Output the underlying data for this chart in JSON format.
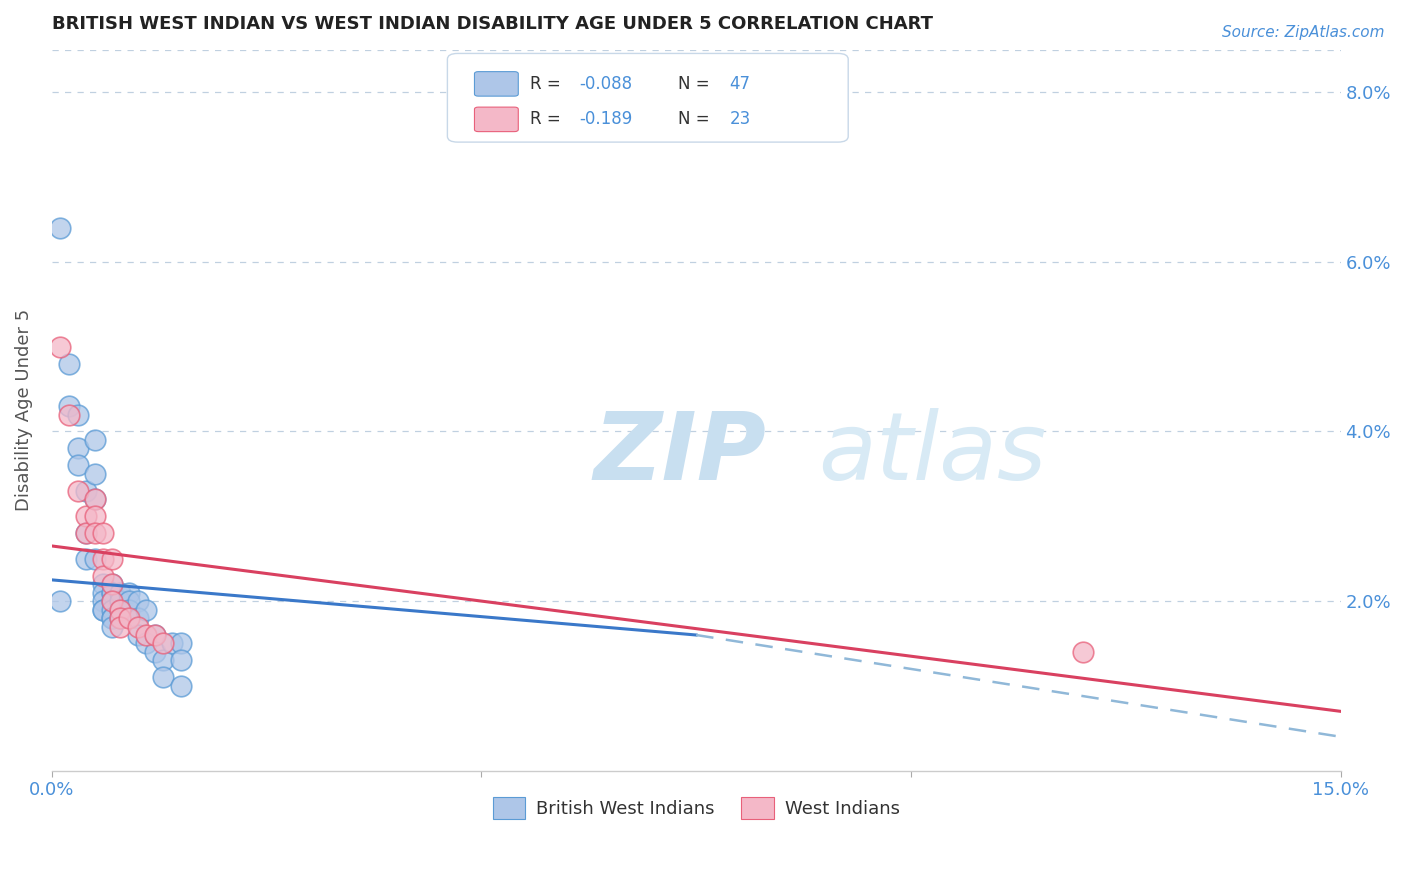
{
  "title": "BRITISH WEST INDIAN VS WEST INDIAN DISABILITY AGE UNDER 5 CORRELATION CHART",
  "source": "Source: ZipAtlas.com",
  "ylabel": "Disability Age Under 5",
  "xmin": 0.0,
  "xmax": 0.15,
  "ymin": 0.0,
  "ymax": 0.085,
  "ytick_vals": [
    0.02,
    0.04,
    0.06,
    0.08
  ],
  "blue_color": "#aec6e8",
  "blue_edge_color": "#5b9bd5",
  "pink_color": "#f4b8c8",
  "pink_edge_color": "#e8607a",
  "trend_blue_color": "#3a78c9",
  "trend_pink_color": "#d94060",
  "trend_dashed_color": "#90b8d8",
  "watermark_zip_color": "#c8dff0",
  "watermark_atlas_color": "#d8eaf5",
  "axis_text_color": "#4a90d9",
  "blue_scatter": [
    [
      0.001,
      0.064
    ],
    [
      0.002,
      0.048
    ],
    [
      0.002,
      0.043
    ],
    [
      0.003,
      0.042
    ],
    [
      0.003,
      0.038
    ],
    [
      0.003,
      0.036
    ],
    [
      0.004,
      0.033
    ],
    [
      0.004,
      0.028
    ],
    [
      0.004,
      0.025
    ],
    [
      0.005,
      0.039
    ],
    [
      0.005,
      0.035
    ],
    [
      0.005,
      0.032
    ],
    [
      0.005,
      0.025
    ],
    [
      0.006,
      0.022
    ],
    [
      0.006,
      0.021
    ],
    [
      0.006,
      0.02
    ],
    [
      0.006,
      0.019
    ],
    [
      0.006,
      0.019
    ],
    [
      0.007,
      0.022
    ],
    [
      0.007,
      0.021
    ],
    [
      0.007,
      0.021
    ],
    [
      0.007,
      0.02
    ],
    [
      0.007,
      0.019
    ],
    [
      0.007,
      0.018
    ],
    [
      0.007,
      0.018
    ],
    [
      0.007,
      0.017
    ],
    [
      0.008,
      0.021
    ],
    [
      0.008,
      0.02
    ],
    [
      0.008,
      0.019
    ],
    [
      0.008,
      0.018
    ],
    [
      0.009,
      0.021
    ],
    [
      0.009,
      0.02
    ],
    [
      0.009,
      0.019
    ],
    [
      0.01,
      0.02
    ],
    [
      0.01,
      0.018
    ],
    [
      0.01,
      0.016
    ],
    [
      0.011,
      0.019
    ],
    [
      0.011,
      0.015
    ],
    [
      0.012,
      0.016
    ],
    [
      0.012,
      0.014
    ],
    [
      0.013,
      0.013
    ],
    [
      0.013,
      0.011
    ],
    [
      0.014,
      0.015
    ],
    [
      0.015,
      0.015
    ],
    [
      0.015,
      0.013
    ],
    [
      0.015,
      0.01
    ],
    [
      0.001,
      0.02
    ]
  ],
  "pink_scatter": [
    [
      0.001,
      0.05
    ],
    [
      0.002,
      0.042
    ],
    [
      0.003,
      0.033
    ],
    [
      0.004,
      0.03
    ],
    [
      0.004,
      0.028
    ],
    [
      0.005,
      0.032
    ],
    [
      0.005,
      0.03
    ],
    [
      0.005,
      0.028
    ],
    [
      0.006,
      0.028
    ],
    [
      0.006,
      0.025
    ],
    [
      0.006,
      0.023
    ],
    [
      0.007,
      0.025
    ],
    [
      0.007,
      0.022
    ],
    [
      0.007,
      0.02
    ],
    [
      0.008,
      0.019
    ],
    [
      0.008,
      0.018
    ],
    [
      0.008,
      0.017
    ],
    [
      0.009,
      0.018
    ],
    [
      0.01,
      0.017
    ],
    [
      0.011,
      0.016
    ],
    [
      0.012,
      0.016
    ],
    [
      0.013,
      0.015
    ],
    [
      0.12,
      0.014
    ]
  ],
  "blue_trend_x": [
    0.0,
    0.075
  ],
  "blue_trend_y": [
    0.0225,
    0.016
  ],
  "pink_trend_x": [
    0.0,
    0.15
  ],
  "pink_trend_y": [
    0.0265,
    0.007
  ],
  "dashed_trend_x": [
    0.075,
    0.15
  ],
  "dashed_trend_y": [
    0.016,
    0.004
  ]
}
